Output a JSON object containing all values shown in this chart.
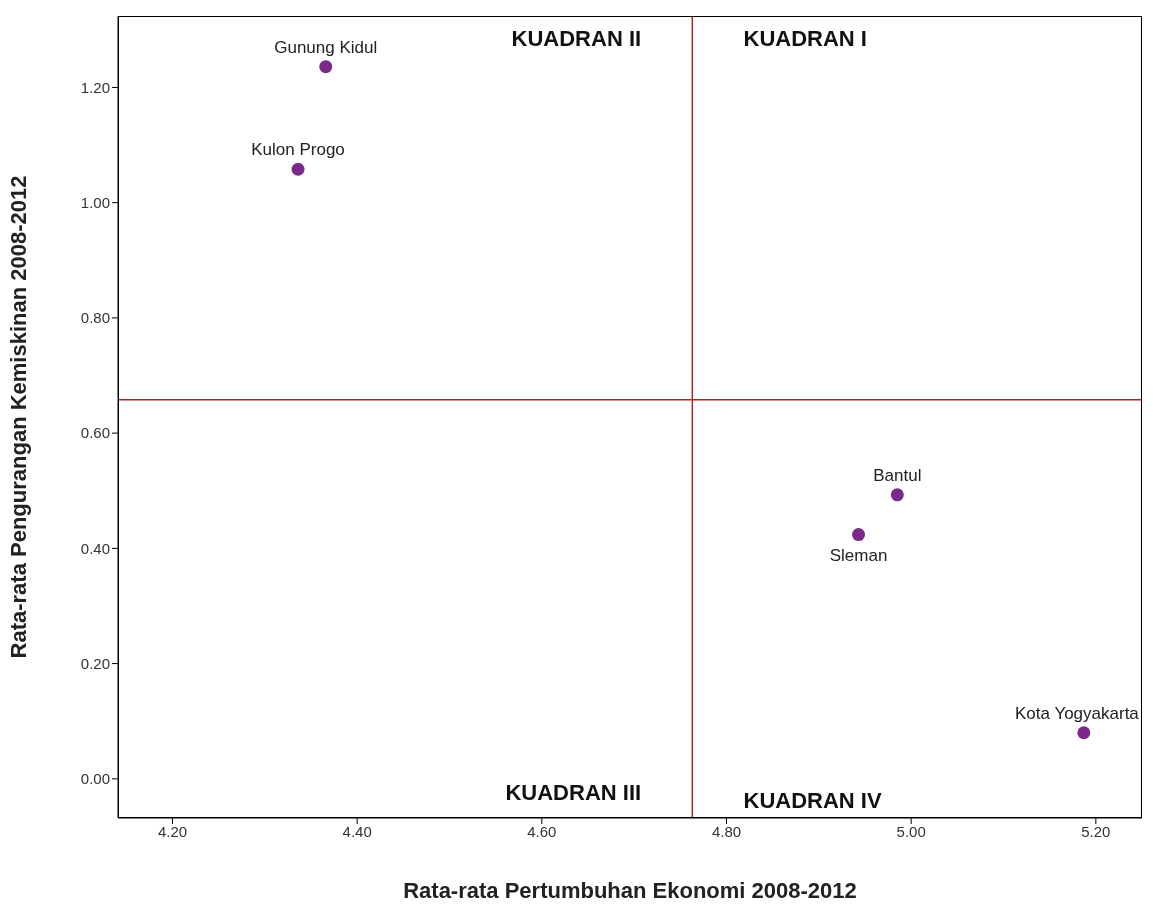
{
  "chart_data": {
    "type": "scatter",
    "xlabel": "Rata-rata Pertumbuhan Ekonomi 2008-2012",
    "ylabel": "Rata-rata Pengurangan Kemiskinan 2008-2012",
    "series": [
      {
        "color": "#7b2a8b",
        "x": [
          4.366,
          4.336,
          4.985,
          4.943,
          5.187
        ],
        "values": [
          1.236,
          1.058,
          0.493,
          0.424,
          0.08
        ]
      }
    ],
    "xlim": [
      4.141,
      5.25
    ],
    "xticks": [
      {
        "value": 4.2,
        "label": "4.20"
      },
      {
        "value": 4.4,
        "label": "4.40"
      },
      {
        "value": 4.6,
        "label": "4.60"
      },
      {
        "value": 4.8,
        "label": "4.80"
      },
      {
        "value": 5.0,
        "label": "5.00"
      },
      {
        "value": 5.2,
        "label": "5.20"
      }
    ],
    "ylim": [
      -0.068,
      1.324
    ],
    "yticks": [
      {
        "value": 0,
        "label": "0.00"
      },
      {
        "value": 0.2,
        "label": "0.20"
      },
      {
        "value": 0.4,
        "label": "0.40"
      },
      {
        "value": 0.6,
        "label": "0.60"
      },
      {
        "value": 0.8,
        "label": "0.80"
      },
      {
        "value": 1.0,
        "label": "1.00"
      },
      {
        "value": 1.2,
        "label": "1.20"
      }
    ],
    "ref_lines": [
      {
        "axis": "x",
        "value": 4.763,
        "color": "#b22222"
      },
      {
        "axis": "y",
        "value": 0.658,
        "color": "#b22222"
      }
    ],
    "annotations": [
      "KUADRAN I",
      "KUADRAN II",
      "KUADRAN III",
      "KUADRAN IV",
      {
        "text": "Gunung Kidul",
        "x": 4.366,
        "y": 1.236
      },
      {
        "text": "Kulon Progo",
        "x": 4.336,
        "y": 1.058
      },
      {
        "text": "Bantul",
        "x": 4.985,
        "y": 0.493
      },
      {
        "text": "Sleman",
        "x": 4.943,
        "y": 0.424
      },
      {
        "text": "Kota Yogyakarta",
        "x": 5.187,
        "y": 0.08
      }
    ],
    "grid": false,
    "legend": false,
    "marker": "circle"
  }
}
